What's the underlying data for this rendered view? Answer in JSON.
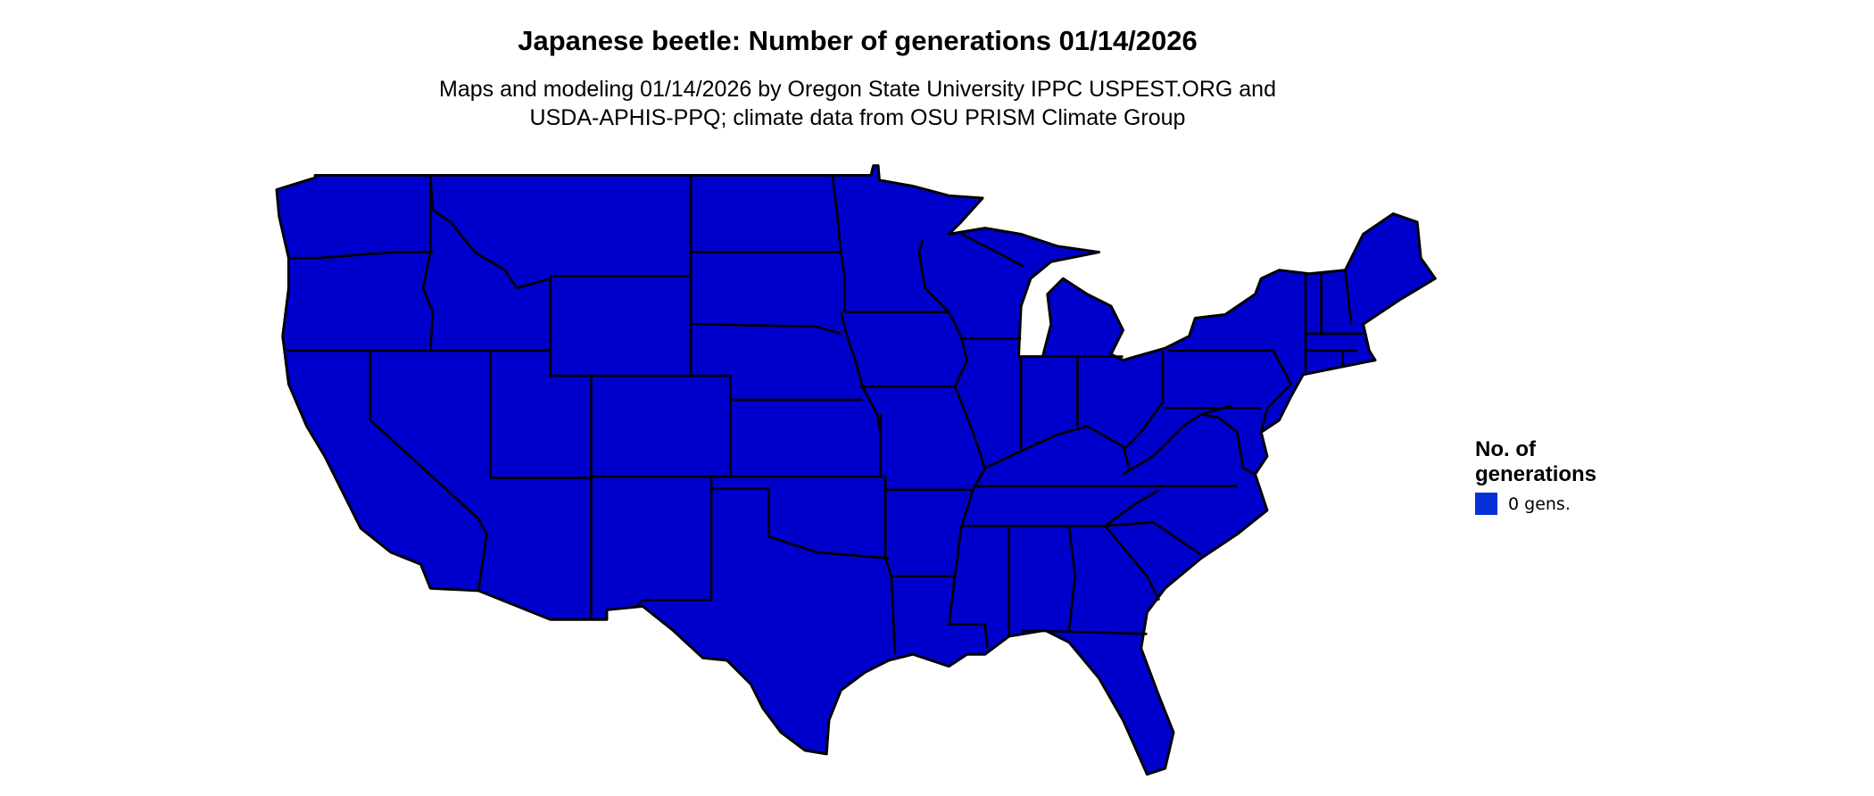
{
  "title": "Japanese beetle: Number of generations 01/14/2026",
  "subtitle": {
    "line1": "Maps and modeling 01/14/2026 by Oregon State University IPPC USPEST.ORG and",
    "line2": "USDA-APHIS-PPQ; climate data from OSU PRISM Climate Group"
  },
  "map": {
    "region": "contiguous United States",
    "fill_color": "#0000cc",
    "border_color": "#000000",
    "value_shown": "0 gens."
  },
  "legend": {
    "title_line1": "No. of",
    "title_line2": "generations",
    "items": [
      {
        "label": "0 gens.",
        "color": "#0532d6"
      }
    ]
  }
}
